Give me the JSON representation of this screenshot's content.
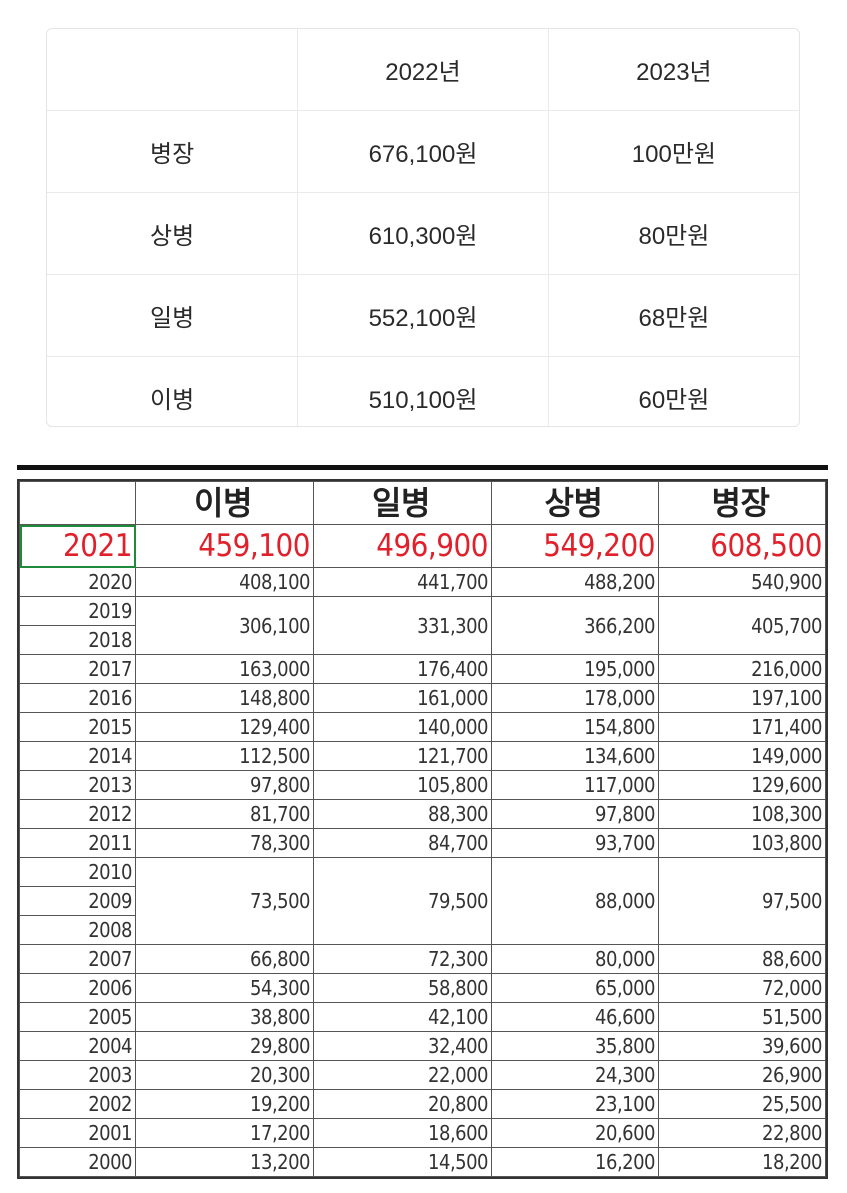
{
  "pay_2022_2023": {
    "headers": [
      "",
      "2022년",
      "2023년"
    ],
    "rows": [
      {
        "rank": "병장",
        "y2022": "676,100원",
        "y2023": "100만원"
      },
      {
        "rank": "상병",
        "y2022": "610,300원",
        "y2023": "80만원"
      },
      {
        "rank": "일병",
        "y2022": "552,100원",
        "y2023": "68만원"
      },
      {
        "rank": "이병",
        "y2022": "510,100원",
        "y2023": "60만원"
      }
    ]
  },
  "pay_history": {
    "headers": [
      "",
      "이병",
      "일병",
      "상병",
      "병장"
    ],
    "highlight": {
      "year": "2021",
      "values": [
        "459,100",
        "496,900",
        "549,200",
        "608,500"
      ],
      "color": "#e0202a"
    },
    "rows": [
      {
        "years": [
          "2020"
        ],
        "values": [
          "408,100",
          "441,700",
          "488,200",
          "540,900"
        ]
      },
      {
        "years": [
          "2019",
          "2018"
        ],
        "values": [
          "306,100",
          "331,300",
          "366,200",
          "405,700"
        ]
      },
      {
        "years": [
          "2017"
        ],
        "values": [
          "163,000",
          "176,400",
          "195,000",
          "216,000"
        ]
      },
      {
        "years": [
          "2016"
        ],
        "values": [
          "148,800",
          "161,000",
          "178,000",
          "197,100"
        ]
      },
      {
        "years": [
          "2015"
        ],
        "values": [
          "129,400",
          "140,000",
          "154,800",
          "171,400"
        ]
      },
      {
        "years": [
          "2014"
        ],
        "values": [
          "112,500",
          "121,700",
          "134,600",
          "149,000"
        ]
      },
      {
        "years": [
          "2013"
        ],
        "values": [
          "97,800",
          "105,800",
          "117,000",
          "129,600"
        ]
      },
      {
        "years": [
          "2012"
        ],
        "values": [
          "81,700",
          "88,300",
          "97,800",
          "108,300"
        ]
      },
      {
        "years": [
          "2011"
        ],
        "values": [
          "78,300",
          "84,700",
          "93,700",
          "103,800"
        ]
      },
      {
        "years": [
          "2010",
          "2009",
          "2008"
        ],
        "values": [
          "73,500",
          "79,500",
          "88,000",
          "97,500"
        ]
      },
      {
        "years": [
          "2007"
        ],
        "values": [
          "66,800",
          "72,300",
          "80,000",
          "88,600"
        ]
      },
      {
        "years": [
          "2006"
        ],
        "values": [
          "54,300",
          "58,800",
          "65,000",
          "72,000"
        ]
      },
      {
        "years": [
          "2005"
        ],
        "values": [
          "38,800",
          "42,100",
          "46,600",
          "51,500"
        ]
      },
      {
        "years": [
          "2004"
        ],
        "values": [
          "29,800",
          "32,400",
          "35,800",
          "39,600"
        ]
      },
      {
        "years": [
          "2003"
        ],
        "values": [
          "20,300",
          "22,000",
          "24,300",
          "26,900"
        ]
      },
      {
        "years": [
          "2002"
        ],
        "values": [
          "19,200",
          "20,800",
          "23,100",
          "25,500"
        ]
      },
      {
        "years": [
          "2001"
        ],
        "values": [
          "17,200",
          "18,600",
          "20,600",
          "22,800"
        ]
      },
      {
        "years": [
          "2000"
        ],
        "values": [
          "13,200",
          "14,500",
          "16,200",
          "18,200"
        ]
      }
    ]
  }
}
